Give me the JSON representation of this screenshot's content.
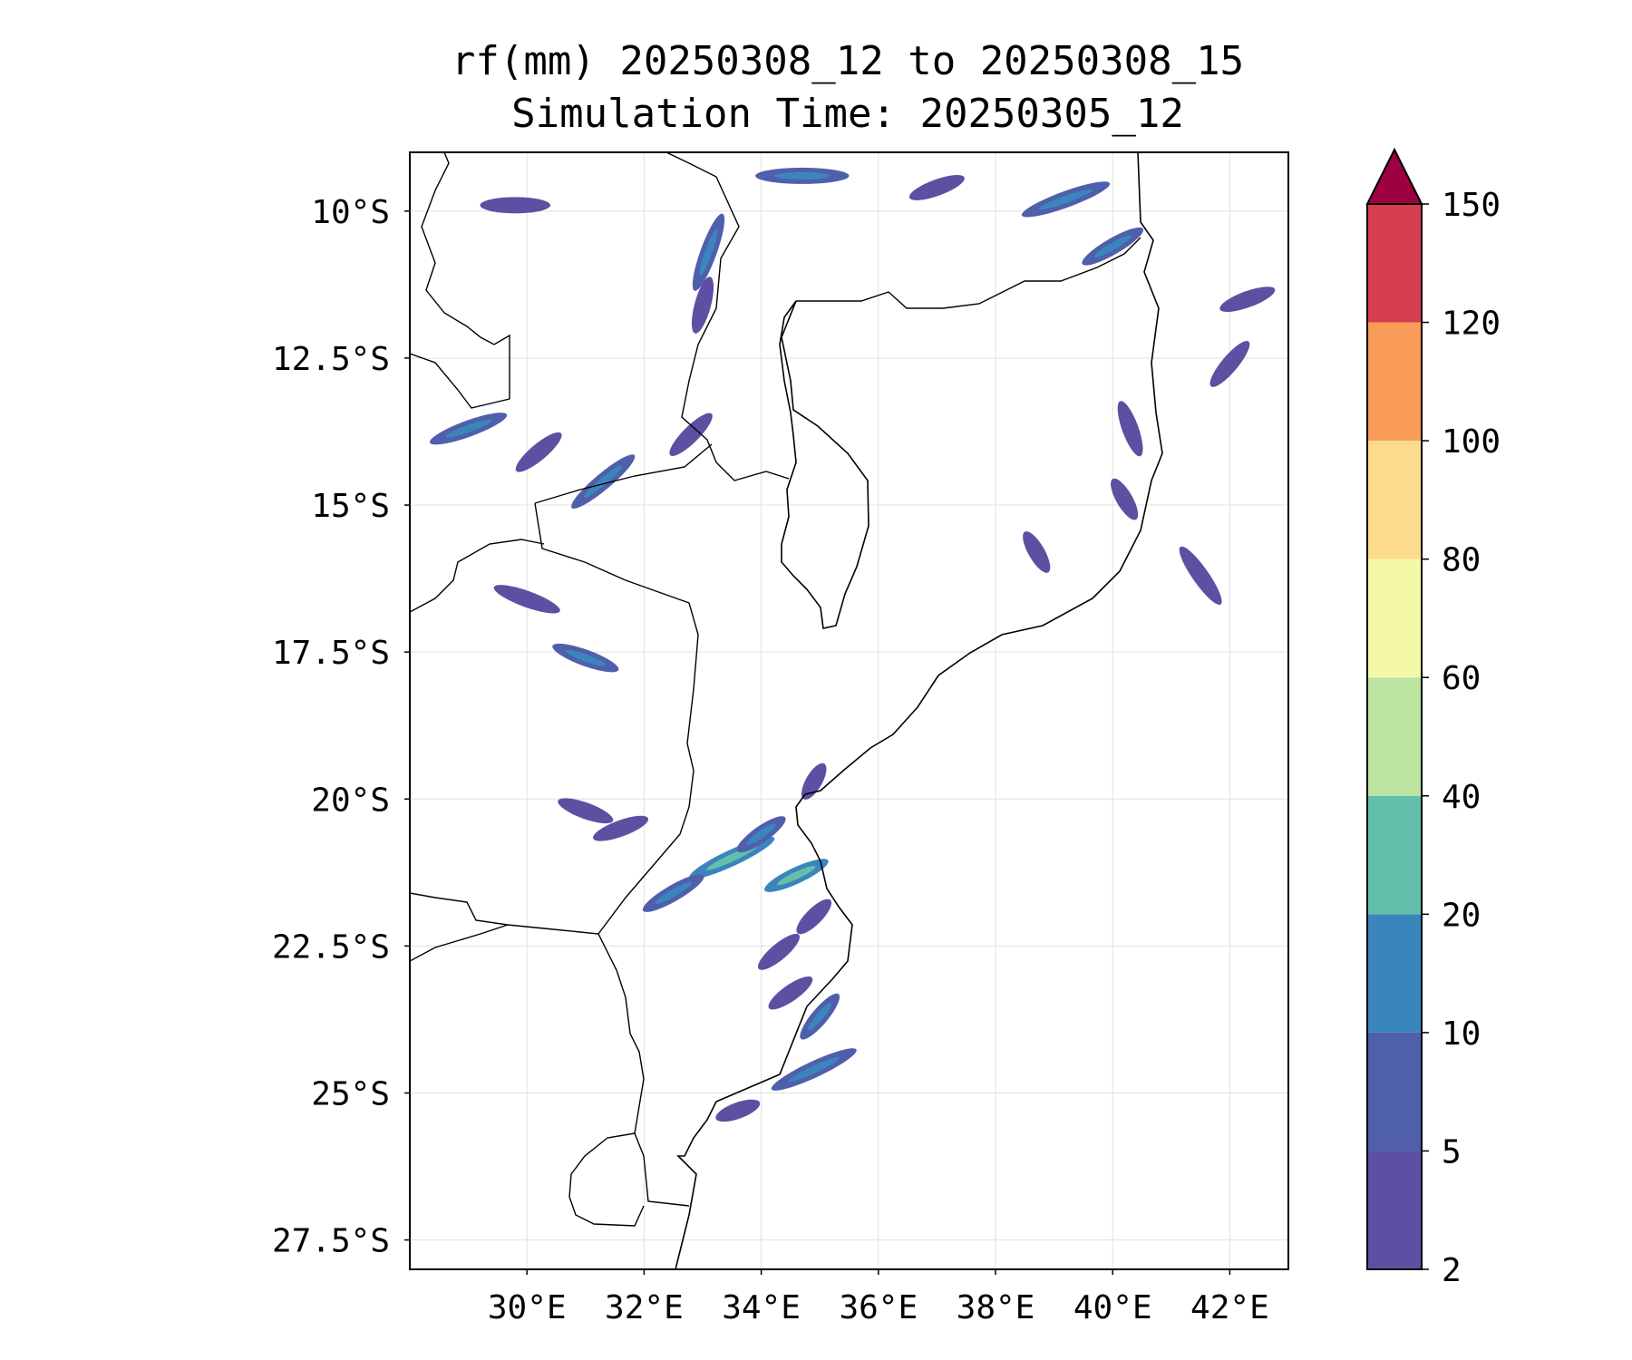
{
  "title": {
    "line1": "rf(mm) 20250308_12 to 20250308_15",
    "line2": "Simulation Time: 20250305_12"
  },
  "map": {
    "lon_range": [
      28.0,
      43.0
    ],
    "lat_range": [
      -28.0,
      -9.0
    ],
    "x_ticks": [
      {
        "value": 30,
        "label": "30°E"
      },
      {
        "value": 32,
        "label": "32°E"
      },
      {
        "value": 34,
        "label": "34°E"
      },
      {
        "value": 36,
        "label": "36°E"
      },
      {
        "value": 38,
        "label": "38°E"
      },
      {
        "value": 40,
        "label": "40°E"
      },
      {
        "value": 42,
        "label": "42°E"
      }
    ],
    "y_ticks": [
      {
        "value": -10,
        "label": "10°S"
      },
      {
        "value": -12.5,
        "label": "12.5°S"
      },
      {
        "value": -15,
        "label": "15°S"
      },
      {
        "value": -17.5,
        "label": "17.5°S"
      },
      {
        "value": -20,
        "label": "20°S"
      },
      {
        "value": -22.5,
        "label": "22.5°S"
      },
      {
        "value": -25,
        "label": "25°S"
      },
      {
        "value": -27.5,
        "label": "27.5°S"
      }
    ],
    "grid": true,
    "rain_bands": [
      {
        "lon": 33.5,
        "lat": -21.0,
        "len": 1.6,
        "angle": -25,
        "level": 2
      },
      {
        "lon": 34.6,
        "lat": -21.3,
        "len": 1.2,
        "angle": -25,
        "level": 2
      },
      {
        "lon": 34.0,
        "lat": -20.6,
        "len": 1.0,
        "angle": -35,
        "level": 1
      },
      {
        "lon": 32.5,
        "lat": -21.6,
        "len": 1.2,
        "angle": -30,
        "level": 1
      },
      {
        "lon": 34.9,
        "lat": -24.6,
        "len": 1.6,
        "angle": -25,
        "level": 1
      },
      {
        "lon": 35.0,
        "lat": -23.7,
        "len": 1.0,
        "angle": -50,
        "level": 1
      },
      {
        "lon": 34.3,
        "lat": -22.6,
        "len": 0.9,
        "angle": -40,
        "level": 0
      },
      {
        "lon": 34.5,
        "lat": -23.3,
        "len": 0.9,
        "angle": -35,
        "level": 0
      },
      {
        "lon": 34.9,
        "lat": -22.0,
        "len": 0.8,
        "angle": -45,
        "level": 0
      },
      {
        "lon": 31.0,
        "lat": -17.6,
        "len": 1.2,
        "angle": 20,
        "level": 1
      },
      {
        "lon": 30.0,
        "lat": -16.6,
        "len": 1.2,
        "angle": 20,
        "level": 0
      },
      {
        "lon": 31.0,
        "lat": -20.2,
        "len": 1.0,
        "angle": 20,
        "level": 0
      },
      {
        "lon": 31.6,
        "lat": -20.5,
        "len": 1.0,
        "angle": -20,
        "level": 0
      },
      {
        "lon": 31.3,
        "lat": -14.6,
        "len": 1.4,
        "angle": -40,
        "level": 1
      },
      {
        "lon": 32.8,
        "lat": -13.8,
        "len": 1.0,
        "angle": -45,
        "level": 0
      },
      {
        "lon": 29.0,
        "lat": -13.7,
        "len": 1.4,
        "angle": -20,
        "level": 1
      },
      {
        "lon": 30.2,
        "lat": -14.1,
        "len": 1.0,
        "angle": -40,
        "level": 0
      },
      {
        "lon": 33.1,
        "lat": -10.7,
        "len": 1.4,
        "angle": -70,
        "level": 1
      },
      {
        "lon": 33.0,
        "lat": -11.6,
        "len": 1.0,
        "angle": -75,
        "level": 0
      },
      {
        "lon": 34.7,
        "lat": -9.4,
        "len": 1.6,
        "angle": 0,
        "level": 1
      },
      {
        "lon": 39.2,
        "lat": -9.8,
        "len": 1.6,
        "angle": -20,
        "level": 1
      },
      {
        "lon": 40.0,
        "lat": -10.6,
        "len": 1.2,
        "angle": -30,
        "level": 1
      },
      {
        "lon": 37.0,
        "lat": -9.6,
        "len": 1.0,
        "angle": -20,
        "level": 0
      },
      {
        "lon": 42.3,
        "lat": -11.5,
        "len": 1.0,
        "angle": -20,
        "level": 0
      },
      {
        "lon": 42.0,
        "lat": -12.6,
        "len": 1.0,
        "angle": -50,
        "level": 0
      },
      {
        "lon": 41.5,
        "lat": -16.2,
        "len": 1.2,
        "angle": 55,
        "level": 0
      },
      {
        "lon": 38.7,
        "lat": -15.8,
        "len": 0.8,
        "angle": 60,
        "level": 0
      },
      {
        "lon": 40.3,
        "lat": -13.7,
        "len": 1.0,
        "angle": 70,
        "level": 0
      },
      {
        "lon": 40.2,
        "lat": -14.9,
        "len": 0.8,
        "angle": 60,
        "level": 0
      },
      {
        "lon": 29.8,
        "lat": -9.9,
        "len": 1.2,
        "angle": 0,
        "level": 0
      },
      {
        "lon": 34.9,
        "lat": -19.7,
        "len": 0.7,
        "angle": -60,
        "level": 0
      },
      {
        "lon": 33.6,
        "lat": -25.3,
        "len": 0.8,
        "angle": -20,
        "level": 0
      }
    ]
  },
  "colorbar": {
    "levels": [
      "2",
      "5",
      "10",
      "20",
      "40",
      "60",
      "80",
      "100",
      "120",
      "150"
    ],
    "colors": [
      "#5e4fa2",
      "#4f5fab",
      "#3a86bc",
      "#63bfab",
      "#bde4a0",
      "#f3f9a9",
      "#fcdc8c",
      "#f99c59",
      "#d53e4f"
    ],
    "extend_color": "#9e0142"
  },
  "colors": {
    "coast": "#000000",
    "grid": "#e0e0e0",
    "background": "#ffffff"
  }
}
